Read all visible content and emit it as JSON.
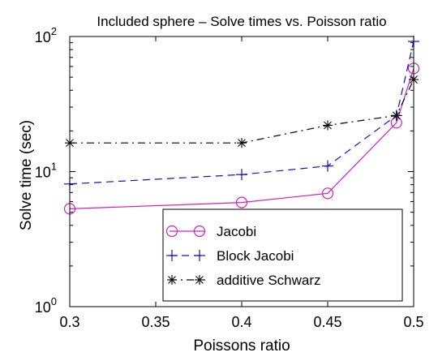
{
  "chart_data": {
    "type": "line",
    "title": "Included sphere – Solve times vs. Poisson ratio",
    "xlabel": "Poissons ratio",
    "ylabel": "Solve time (sec)",
    "xlim": [
      0.3,
      0.5
    ],
    "ylim": [
      1,
      100
    ],
    "yscale": "log",
    "x": [
      0.3,
      0.4,
      0.45,
      0.49,
      0.5
    ],
    "x_ticks": [
      "0.3",
      "0.35",
      "0.4",
      "0.45",
      "0.5"
    ],
    "x_tick_values": [
      0.3,
      0.35,
      0.4,
      0.45,
      0.5
    ],
    "y_ticks": [
      {
        "base": "10",
        "exp": "0",
        "value": 1
      },
      {
        "base": "10",
        "exp": "1",
        "value": 10
      },
      {
        "base": "10",
        "exp": "2",
        "value": 100
      }
    ],
    "grid": false,
    "legend_position": "bottom-right",
    "series": [
      {
        "name": "Jacobi",
        "values": [
          5.3,
          5.9,
          6.9,
          23,
          58
        ],
        "color": "#d020c0",
        "marker": "circle",
        "dash": "solid"
      },
      {
        "name": "Block Jacobi",
        "values": [
          8.1,
          9.5,
          11,
          26,
          92
        ],
        "color": "#1010c8",
        "marker": "plus",
        "dash": "dashed"
      },
      {
        "name": "additive Schwarz",
        "values": [
          16.3,
          16.3,
          22,
          26,
          48
        ],
        "color": "#000000",
        "marker": "asterisk",
        "dash": "dashdot"
      }
    ]
  }
}
